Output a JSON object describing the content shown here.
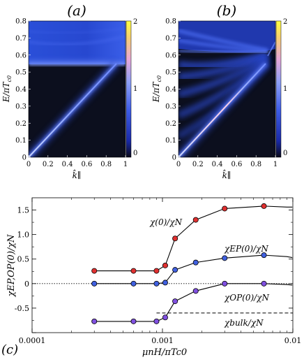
{
  "chart_data": [
    {
      "type": "heatmap",
      "panel_label": "(a)",
      "xlabel": "k̂∥",
      "ylabel": "E/πT",
      "ylabel_sub": "c0",
      "xlim": [
        0,
        1
      ],
      "ylim": [
        0,
        0.8
      ],
      "xticks": [
        "0",
        "0.2",
        "0.4",
        "0.6",
        "0.8",
        "1"
      ],
      "yticks": [
        "0",
        "0.1",
        "0.2",
        "0.3",
        "0.4",
        "0.5",
        "0.6",
        "0.7",
        "0.8"
      ],
      "colorbar": {
        "range": [
          0,
          2
        ],
        "ticks": [
          "0",
          "1",
          "2"
        ],
        "colors": [
          "#0a0a1a",
          "#1a2aa8",
          "#4d6cf0",
          "#f0a0c8",
          "#ffff40"
        ]
      },
      "features": {
        "gap_edge_E": 0.55,
        "bound_state_line": [
          [
            0.0,
            0.0
          ],
          [
            0.9,
            0.55
          ]
        ],
        "bulk_continuum": "above 0.55"
      }
    },
    {
      "type": "heatmap",
      "panel_label": "(b)",
      "xlabel": "k̂∥",
      "ylabel": "E/πT",
      "ylabel_sub": "c0",
      "xlim": [
        0,
        1
      ],
      "ylim": [
        0,
        0.8
      ],
      "xticks": [
        "0",
        "0.2",
        "0.4",
        "0.6",
        "0.8",
        "1"
      ],
      "yticks": [
        "0",
        "0.1",
        "0.2",
        "0.3",
        "0.4",
        "0.5",
        "0.6",
        "0.7",
        "0.8"
      ],
      "colorbar": {
        "range": [
          0,
          2
        ],
        "ticks": [
          "0",
          "1",
          "2"
        ],
        "colors": [
          "#0a0a1a",
          "#1a2aa8",
          "#4d6cf0",
          "#f0a0c8",
          "#ffff40"
        ]
      },
      "features": {
        "bound_state_line": [
          [
            0.0,
            0.0
          ],
          [
            0.9,
            0.55
          ]
        ],
        "band_convergence_E": 0.58
      }
    },
    {
      "type": "line",
      "panel_label": "(c)",
      "xlabel": "μnH/πTc0",
      "ylabel": "χEP,OP(0)/χN",
      "xscale": "log",
      "xlim": [
        0.0001,
        0.01
      ],
      "ylim": [
        -1.0,
        1.75
      ],
      "xticks": [
        0.0001,
        0.001,
        0.01
      ],
      "xtick_labels": [
        "0.0001",
        "0.001",
        "0.01"
      ],
      "yticks": [
        -1.0,
        -0.5,
        0,
        0.5,
        1.0,
        1.5
      ],
      "ytick_labels": [
        "",
        "-0.5",
        "0",
        "0.5",
        "1.0",
        "1.5"
      ],
      "zero_line": true,
      "bulk_dashed_level": -0.6,
      "series": [
        {
          "name": "χ(0)/χN",
          "color": "#e03030",
          "x": [
            0.0003,
            0.0006,
            0.0009,
            0.00105,
            0.00125,
            0.0018,
            0.003,
            0.006
          ],
          "y": [
            0.26,
            0.26,
            0.26,
            0.37,
            0.92,
            1.3,
            1.53,
            1.58
          ],
          "tail": [
            [
              0.009,
              1.56
            ],
            [
              0.0099,
              1.56
            ]
          ]
        },
        {
          "name": "χEP(0)/χN",
          "color": "#4060e0",
          "x": [
            0.0003,
            0.0006,
            0.0009,
            0.00105,
            0.00125,
            0.0018,
            0.003,
            0.006
          ],
          "y": [
            0.0,
            0.0,
            0.0,
            0.02,
            0.28,
            0.43,
            0.52,
            0.58
          ],
          "tail": [
            [
              0.009,
              0.55
            ],
            [
              0.0099,
              0.53
            ]
          ]
        },
        {
          "name": "χOP(0)/χN",
          "color": "#8050e0",
          "x": [
            0.0003,
            0.0006,
            0.0009,
            0.00105,
            0.00125,
            0.0018,
            0.003,
            0.006
          ],
          "y": [
            -0.77,
            -0.77,
            -0.77,
            -0.69,
            -0.36,
            -0.15,
            0.0,
            0.0
          ],
          "tail": [
            [
              0.009,
              -0.02
            ],
            [
              0.0099,
              -0.03
            ]
          ]
        }
      ],
      "annotations": [
        {
          "text": "χ(0)/χN"
        },
        {
          "text": "χEP(0)/χN"
        },
        {
          "text": "χOP(0)/χN"
        },
        {
          "text": "χbulk/χN"
        }
      ]
    }
  ]
}
